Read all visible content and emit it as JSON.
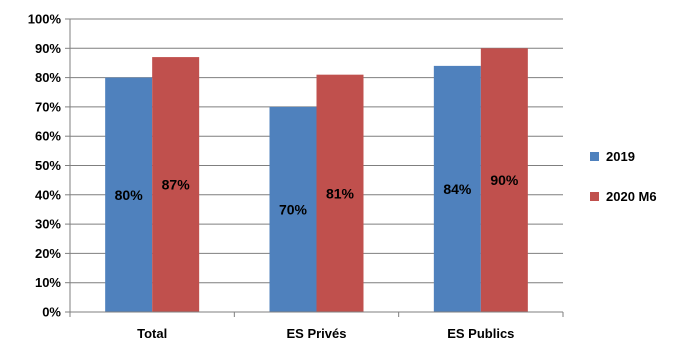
{
  "chart_data": {
    "type": "bar",
    "categories": [
      "Total",
      "ES Privés",
      "ES Publics"
    ],
    "series": [
      {
        "name": "2019",
        "values": [
          80,
          70,
          84
        ],
        "labels": [
          "80%",
          "70%",
          "84%"
        ],
        "color": "#4f81bd"
      },
      {
        "name": "2020 M6",
        "values": [
          87,
          81,
          90
        ],
        "labels": [
          "87%",
          "81%",
          "90%"
        ],
        "color": "#c0504d"
      }
    ],
    "yticks": [
      "0%",
      "10%",
      "20%",
      "30%",
      "40%",
      "50%",
      "60%",
      "70%",
      "80%",
      "90%",
      "100%"
    ],
    "ylim": [
      0,
      100
    ],
    "grid": true,
    "legend_position": "right",
    "title": "",
    "xlabel": "",
    "ylabel": ""
  }
}
